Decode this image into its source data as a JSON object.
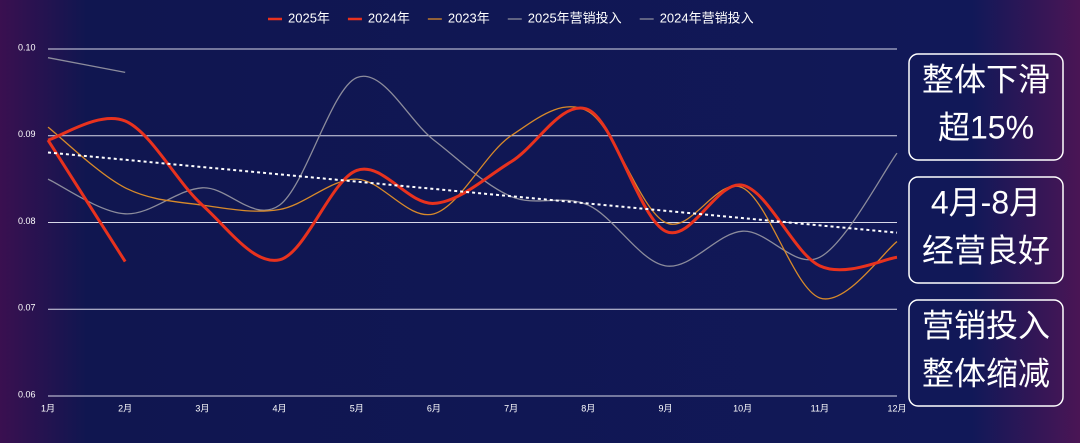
{
  "chart_data": {
    "type": "line",
    "categories": [
      "1月",
      "2月",
      "3月",
      "4月",
      "5月",
      "6月",
      "7月",
      "8月",
      "9月",
      "10月",
      "11月",
      "12月"
    ],
    "series": [
      {
        "name": "2025年",
        "color": "#e8321e",
        "width": 3,
        "values": [
          0.0895,
          0.0755,
          null,
          null,
          null,
          null,
          null,
          null,
          null,
          null,
          null,
          null
        ]
      },
      {
        "name": "2024年",
        "color": "#e8321e",
        "width": 3,
        "values": [
          0.0895,
          0.0917,
          0.082,
          0.0757,
          0.086,
          0.0822,
          0.087,
          0.093,
          0.079,
          0.0843,
          0.075,
          0.076
        ]
      },
      {
        "name": "2023年",
        "color": "#d88a2a",
        "width": 1.3,
        "values": [
          0.091,
          0.084,
          0.082,
          0.0815,
          0.085,
          0.081,
          0.09,
          0.0928,
          0.08,
          0.084,
          0.0713,
          0.0778
        ]
      },
      {
        "name": "2025年营销投入",
        "color": "#8c8c9c",
        "width": 1.3,
        "values": [
          0.099,
          0.0973,
          null,
          null,
          null,
          null,
          null,
          null,
          null,
          null,
          null,
          null
        ]
      },
      {
        "name": "2024年营销投入",
        "color": "#8c8c9c",
        "width": 1.3,
        "values": [
          0.085,
          0.081,
          0.084,
          0.082,
          0.0967,
          0.0895,
          0.083,
          0.082,
          0.075,
          0.079,
          0.076,
          0.088
        ]
      }
    ],
    "trendline": true,
    "ylim": [
      0.06,
      0.1
    ],
    "yticks": [
      0.06,
      0.07,
      0.08,
      0.09,
      {
        "value": 0.1,
        "label": "0.10"
      }
    ],
    "grid": true,
    "legend": "top",
    "annotations": [
      [
        "整体下滑",
        "超15%"
      ],
      [
        "4月-8月",
        "经营良好"
      ],
      [
        "营销投入",
        "整体缩减"
      ]
    ]
  }
}
